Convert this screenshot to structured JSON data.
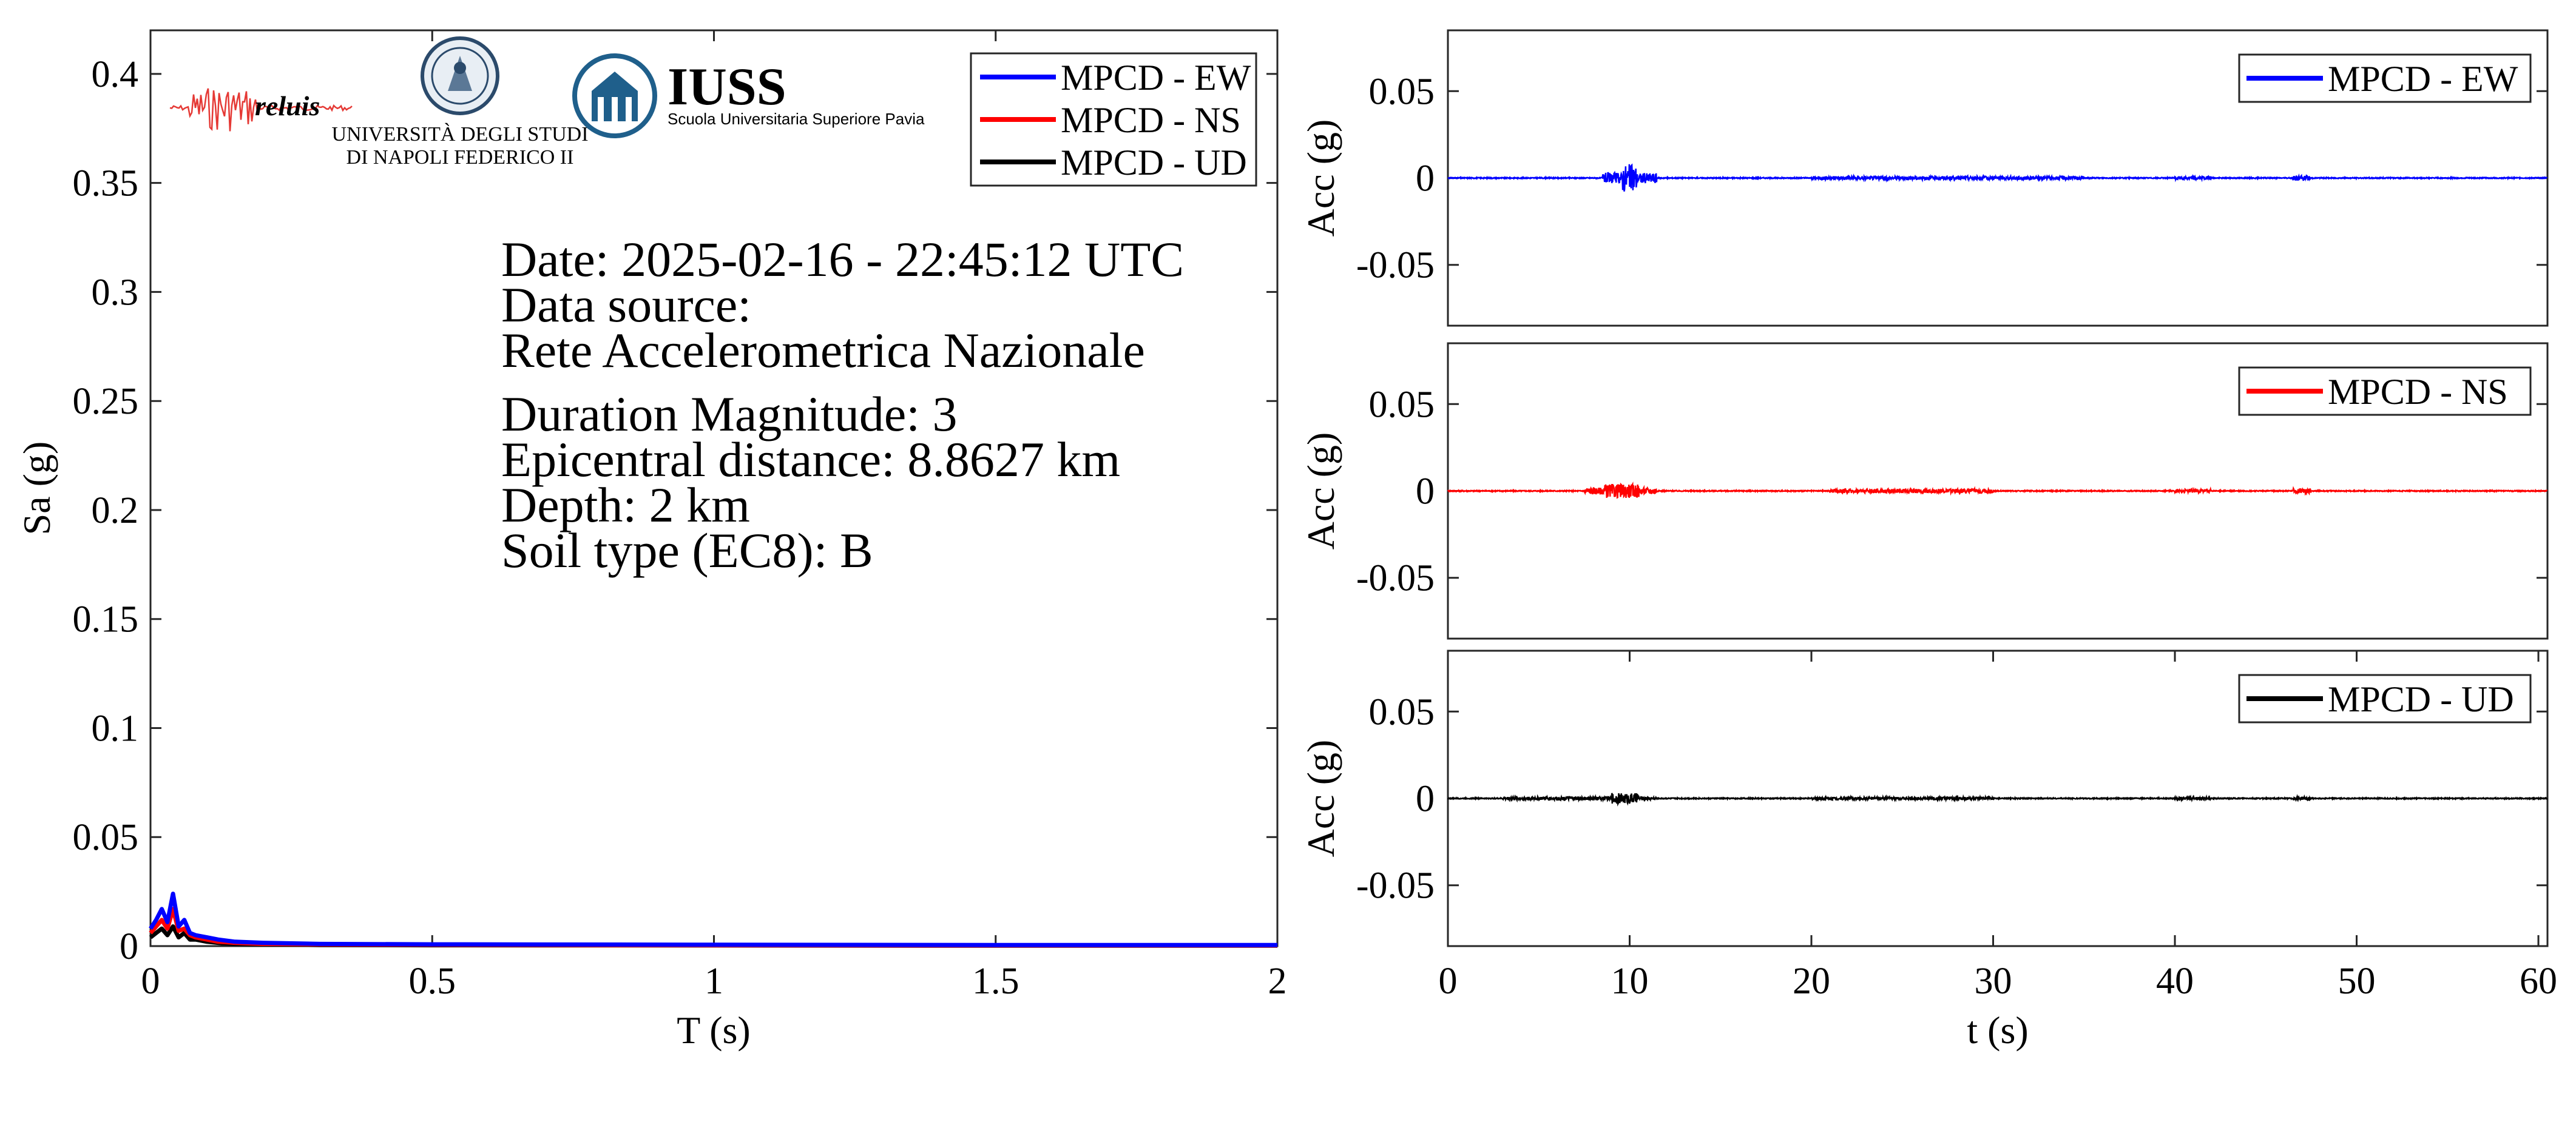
{
  "colors": {
    "ew": "#0000ff",
    "ns": "#ff0000",
    "ud": "#000000",
    "frame": "#262626",
    "iuss": "#1f5f8b"
  },
  "logos": {
    "reluis": "reluis",
    "unina_line1": "UNIVERSITÀ DEGLI STUDI",
    "unina_line2": "DI NAPOLI FEDERICO II",
    "iuss_main": "IUSS",
    "iuss_sub": "Scuola Universitaria Superiore Pavia"
  },
  "info": {
    "date": "Date: 2025-02-16 - 22:45:12 UTC",
    "source_label": "Data source:",
    "source": "Rete Accelerometrica Nazionale",
    "magnitude": "Duration Magnitude: 3",
    "distance": "Epicentral distance: 8.8627 km",
    "depth": "Depth: 2 km",
    "soil": "Soil type (EC8): B"
  },
  "chart_data": [
    {
      "type": "line",
      "xlabel": "T (s)",
      "ylabel": "Sa (g)",
      "xlim": [
        0,
        2
      ],
      "ylim": [
        0,
        0.42
      ],
      "xticks": [
        "0",
        "0.5",
        "1",
        "1.5",
        "2"
      ],
      "yticks": [
        "0",
        "0.05",
        "0.1",
        "0.15",
        "0.2",
        "0.25",
        "0.3",
        "0.35",
        "0.4"
      ],
      "legend_position": "top-right",
      "series": [
        {
          "name": "MPCD - EW",
          "color": "#0000ff",
          "x": [
            0,
            0.01,
            0.02,
            0.03,
            0.04,
            0.05,
            0.06,
            0.07,
            0.08,
            0.1,
            0.12,
            0.15,
            0.2,
            0.3,
            0.5,
            1.0,
            1.5,
            2.0
          ],
          "y": [
            0.008,
            0.012,
            0.017,
            0.011,
            0.024,
            0.009,
            0.012,
            0.006,
            0.005,
            0.004,
            0.003,
            0.002,
            0.0015,
            0.001,
            0.0008,
            0.0006,
            0.0005,
            0.0005
          ]
        },
        {
          "name": "MPCD - NS",
          "color": "#ff0000",
          "x": [
            0,
            0.01,
            0.02,
            0.03,
            0.04,
            0.05,
            0.06,
            0.07,
            0.08,
            0.1,
            0.12,
            0.15,
            0.2,
            0.3,
            0.5,
            1.0,
            1.5,
            2.0
          ],
          "y": [
            0.006,
            0.009,
            0.012,
            0.008,
            0.017,
            0.007,
            0.008,
            0.005,
            0.004,
            0.003,
            0.002,
            0.0015,
            0.001,
            0.0008,
            0.0006,
            0.0004,
            0.0003,
            0.0003
          ]
        },
        {
          "name": "MPCD - UD",
          "color": "#000000",
          "x": [
            0,
            0.01,
            0.02,
            0.03,
            0.04,
            0.05,
            0.06,
            0.07,
            0.08,
            0.1,
            0.12,
            0.15,
            0.2,
            0.3,
            0.5,
            1.0,
            1.5,
            2.0
          ],
          "y": [
            0.004,
            0.006,
            0.008,
            0.005,
            0.009,
            0.004,
            0.006,
            0.003,
            0.003,
            0.002,
            0.0015,
            0.001,
            0.0008,
            0.0005,
            0.0004,
            0.0003,
            0.0002,
            0.0002
          ]
        }
      ]
    },
    {
      "type": "line",
      "xlabel": "",
      "ylabel": "Acc (g)",
      "xlim": [
        0,
        60.5
      ],
      "ylim": [
        -0.085,
        0.085
      ],
      "yticks": [
        "0.05",
        "0",
        "-0.05"
      ],
      "legend_position": "top-right",
      "series": [
        {
          "name": "MPCD - EW",
          "color": "#0000ff",
          "bursts": [
            [
              9.6,
              10.4,
              0.008
            ],
            [
              8.5,
              11.5,
              0.003
            ],
            [
              20,
              35,
              0.001
            ],
            [
              40,
              42,
              0.001
            ],
            [
              46.5,
              47.5,
              0.0015
            ]
          ]
        }
      ]
    },
    {
      "type": "line",
      "xlabel": "",
      "ylabel": "Acc (g)",
      "xlim": [
        0,
        60.5
      ],
      "ylim": [
        -0.085,
        0.085
      ],
      "yticks": [
        "0.05",
        "0",
        "-0.05"
      ],
      "legend_position": "top-right",
      "series": [
        {
          "name": "MPCD - NS",
          "color": "#ff0000",
          "bursts": [
            [
              8.5,
              10.5,
              0.004
            ],
            [
              7.5,
              11.5,
              0.002
            ],
            [
              21,
              30,
              0.0012
            ],
            [
              40,
              42,
              0.001
            ],
            [
              46.5,
              47.5,
              0.0015
            ]
          ]
        }
      ]
    },
    {
      "type": "line",
      "xlabel": "t (s)",
      "ylabel": "Acc (g)",
      "xlim": [
        0,
        60.5
      ],
      "ylim": [
        -0.085,
        0.085
      ],
      "xticks": [
        "0",
        "10",
        "20",
        "30",
        "40",
        "50",
        "60"
      ],
      "yticks": [
        "0.05",
        "0",
        "-0.05"
      ],
      "legend_position": "top-right",
      "series": [
        {
          "name": "MPCD - UD",
          "color": "#000000",
          "bursts": [
            [
              9,
              10.5,
              0.003
            ],
            [
              3,
              11.5,
              0.001
            ],
            [
              20,
              30,
              0.0008
            ],
            [
              40,
              42,
              0.0008
            ],
            [
              46.5,
              47.5,
              0.001
            ]
          ]
        }
      ]
    }
  ]
}
